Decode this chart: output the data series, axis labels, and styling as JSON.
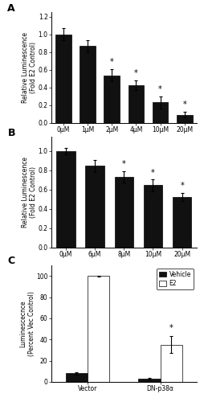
{
  "panel_A": {
    "categories": [
      "0μM",
      "1μM",
      "2μM",
      "4μM",
      "10μM",
      "20μM"
    ],
    "values": [
      1.0,
      0.865,
      0.535,
      0.425,
      0.23,
      0.09
    ],
    "errors": [
      0.07,
      0.07,
      0.07,
      0.055,
      0.07,
      0.03
    ],
    "sig": [
      false,
      false,
      true,
      true,
      true,
      true
    ],
    "ylabel": "Relative Luminescence\n(Fold E2 Control)",
    "ylim": [
      0,
      1.25
    ],
    "yticks": [
      0.0,
      0.2,
      0.4,
      0.6,
      0.8,
      1.0,
      1.2
    ],
    "label": "A"
  },
  "panel_B": {
    "categories": [
      "0μM",
      "6μM",
      "8μM",
      "10μM",
      "20μM"
    ],
    "values": [
      1.0,
      0.845,
      0.73,
      0.645,
      0.525
    ],
    "errors": [
      0.03,
      0.06,
      0.06,
      0.06,
      0.04
    ],
    "sig": [
      false,
      false,
      true,
      true,
      true
    ],
    "ylabel": "Relative Luminescence\n(Fold E2 Control)",
    "ylim": [
      0,
      1.15
    ],
    "yticks": [
      0.0,
      0.2,
      0.4,
      0.6,
      0.8,
      1.0
    ],
    "label": "B"
  },
  "panel_C": {
    "groups": [
      "Vector",
      "DN-p38α"
    ],
    "vehicle_values": [
      8.0,
      3.0
    ],
    "e2_values": [
      100.0,
      35.0
    ],
    "vehicle_errors": [
      1.0,
      0.8
    ],
    "e2_errors": [
      0.5,
      8.0
    ],
    "sig": [
      false,
      true
    ],
    "ylabel": "Luminescecnce\n(Percent Vec Control)",
    "ylim": [
      0,
      110
    ],
    "yticks": [
      0,
      20,
      40,
      60,
      80,
      100
    ],
    "label": "C",
    "bar_width": 0.3,
    "vehicle_color": "#111111",
    "e2_color": "#ffffff",
    "legend_labels": [
      "Vehicle",
      "E2"
    ]
  },
  "bar_color": "#111111",
  "bar_edgecolor": "#000000",
  "errorbar_color": "#000000",
  "fontsize_label": 5.5,
  "fontsize_tick": 5.5,
  "fontsize_panel": 9,
  "fontsize_sig": 7
}
